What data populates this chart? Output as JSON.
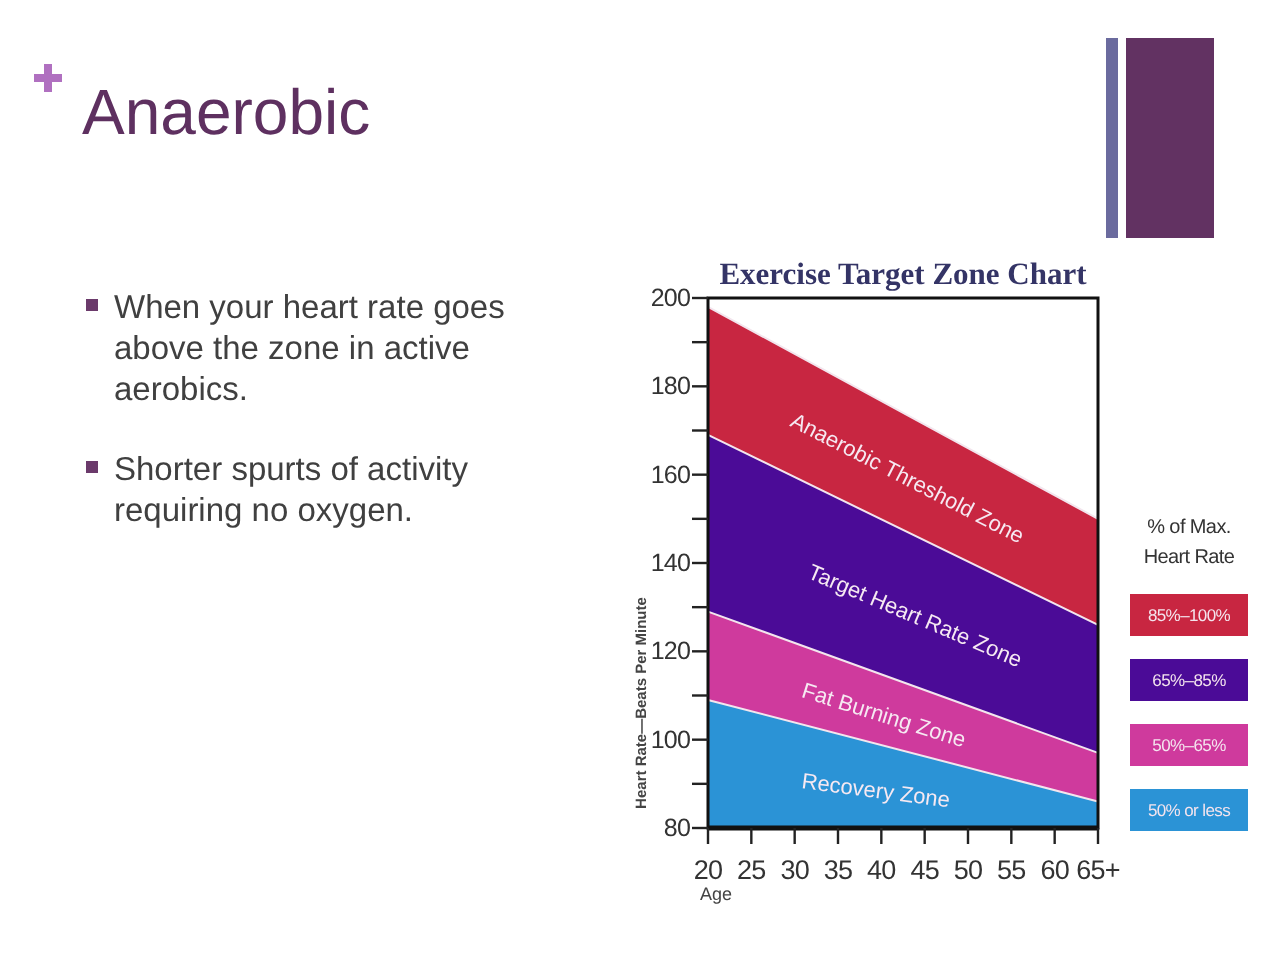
{
  "chart_data": [
    {
      "type": "other",
      "title": "Anaerobic",
      "annotations": [
        "When your heart rate goes above the zone in active aerobics.",
        "Shorter spurts of activity requiring no oxygen."
      ]
    },
    {
      "type": "area",
      "title": "Exercise Target Zone Chart",
      "xlabel": "Age",
      "ylabel": "Heart Rate—Beats Per Minute",
      "legend_title": "% of Max. Heart Rate",
      "x": [
        20,
        65
      ],
      "series": [
        {
          "name": "85%–100%",
          "color": "#c82641",
          "values": [
            198,
            150
          ]
        },
        {
          "name": "65%–85%",
          "color": "#4b0b97",
          "values": [
            169,
            126
          ]
        },
        {
          "name": "50%–65%",
          "color": "#cf3a9d",
          "values": [
            129,
            97
          ]
        },
        {
          "name": "50% or less",
          "color": "#2b93d6",
          "values": [
            109,
            86
          ]
        }
      ],
      "xlim": [
        20,
        65
      ],
      "xticks": [
        20,
        25,
        30,
        35,
        40,
        45,
        50,
        55,
        60,
        {
          "value": 65,
          "label": "65+"
        }
      ],
      "ylim": [
        80,
        200
      ],
      "yticks": [
        80,
        {
          "value": 90,
          "label": null
        },
        100,
        {
          "value": 110,
          "label": null
        },
        120,
        {
          "value": 130,
          "label": null
        },
        140,
        {
          "value": 150,
          "label": null
        },
        160,
        {
          "value": 170,
          "label": null
        },
        180,
        {
          "value": 190,
          "label": null
        },
        200
      ],
      "legend": "right",
      "annotations": [
        "Anaerobic Threshold Zone",
        "Target Heart Rate Zone",
        "Fat Burning Zone",
        "Recovery Zone"
      ]
    }
  ]
}
